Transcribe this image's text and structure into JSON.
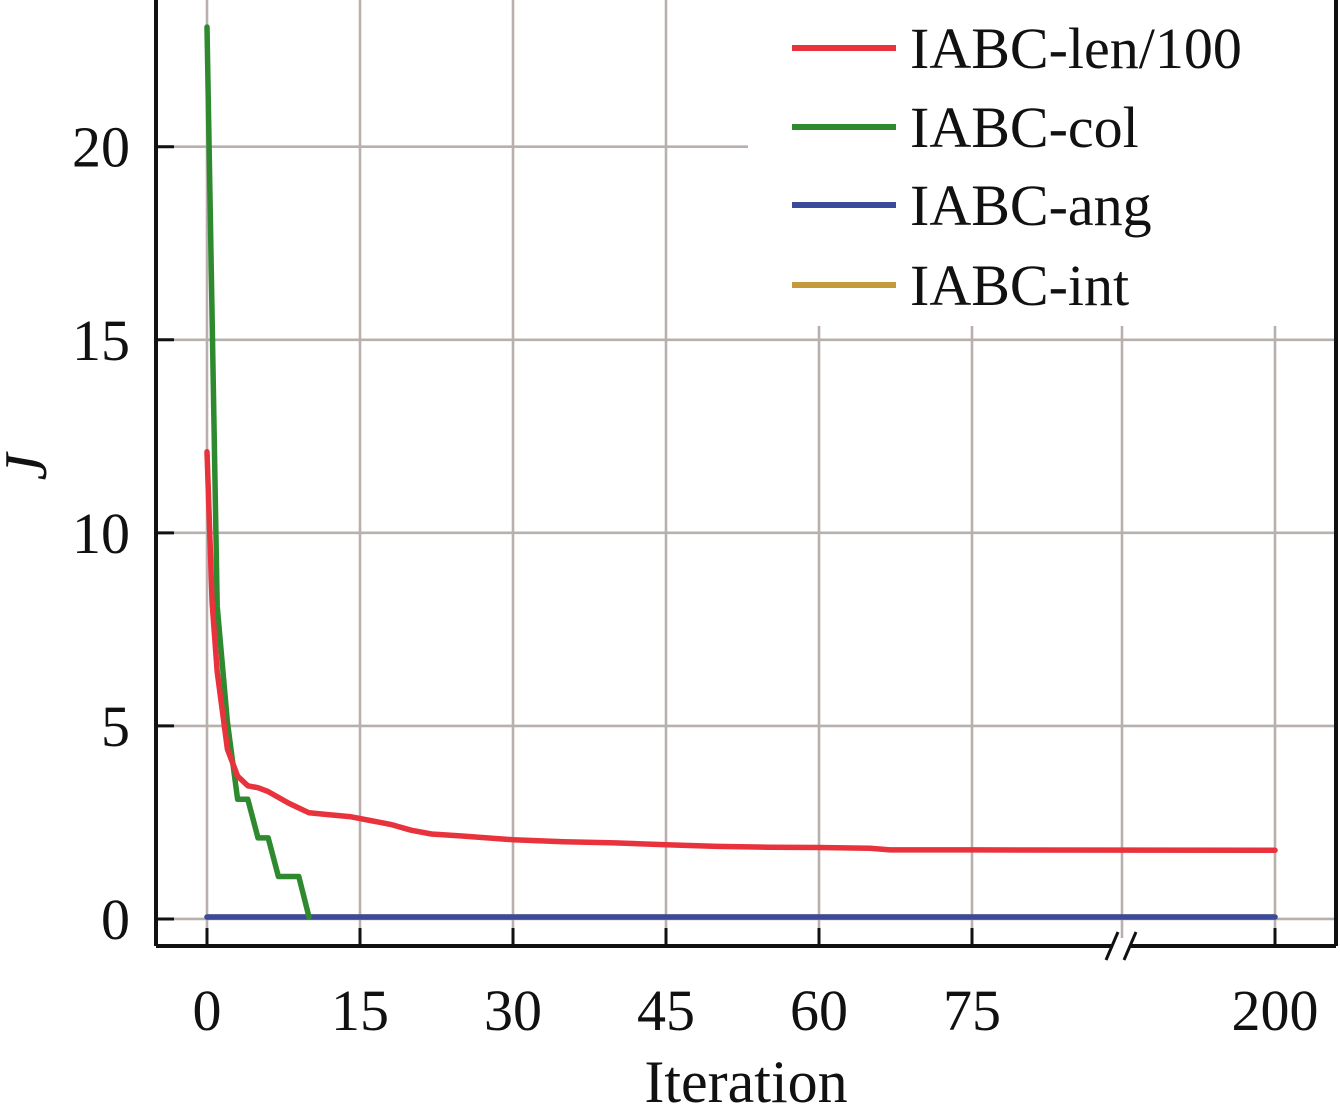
{
  "chart_data": {
    "type": "line",
    "xlabel": "Iteration",
    "ylabel": "J",
    "ylim": [
      -0.7,
      23.8
    ],
    "x_ticks": [
      "0",
      "15",
      "30",
      "45",
      "60",
      "75",
      "200"
    ],
    "y_ticks": [
      "0",
      "5",
      "10",
      "15",
      "20"
    ],
    "x_axis_break": "between 75 and 200",
    "grid": true,
    "legend_position": "top-right",
    "series": [
      {
        "name": "IABC-len/100",
        "color": "#e8323c",
        "x": [
          0,
          0.5,
          1,
          2,
          3,
          4,
          5,
          6,
          8,
          10,
          12,
          14,
          16,
          18,
          20,
          22,
          25,
          30,
          35,
          40,
          45,
          50,
          55,
          60,
          65,
          67,
          75,
          90,
          105,
          120,
          135,
          150,
          165,
          180,
          190,
          200
        ],
        "y": [
          12.1,
          8.2,
          6.4,
          4.4,
          3.7,
          3.45,
          3.4,
          3.3,
          3.0,
          2.75,
          2.7,
          2.65,
          2.55,
          2.45,
          2.3,
          2.2,
          2.15,
          2.05,
          2.0,
          1.97,
          1.92,
          1.88,
          1.86,
          1.85,
          1.83,
          1.79,
          1.79,
          1.78,
          1.78,
          1.78,
          1.78,
          1.78,
          1.78,
          1.78,
          1.78,
          1.78
        ]
      },
      {
        "name": "IABC-col",
        "color": "#2f8a2f",
        "x": [
          0,
          1,
          2,
          3,
          4,
          5,
          6,
          7,
          8,
          9,
          10
        ],
        "y": [
          23.1,
          8.1,
          5.1,
          3.1,
          3.1,
          2.1,
          2.1,
          1.1,
          1.1,
          1.1,
          0.05
        ]
      },
      {
        "name": "IABC-ang",
        "color": "#3b4a9a",
        "x": [
          0,
          200
        ],
        "y": [
          0.05,
          0.05
        ]
      },
      {
        "name": "IABC-int",
        "color": "#c49a3a",
        "x": [
          0,
          200
        ],
        "y": [
          0.05,
          0.05
        ]
      }
    ]
  }
}
